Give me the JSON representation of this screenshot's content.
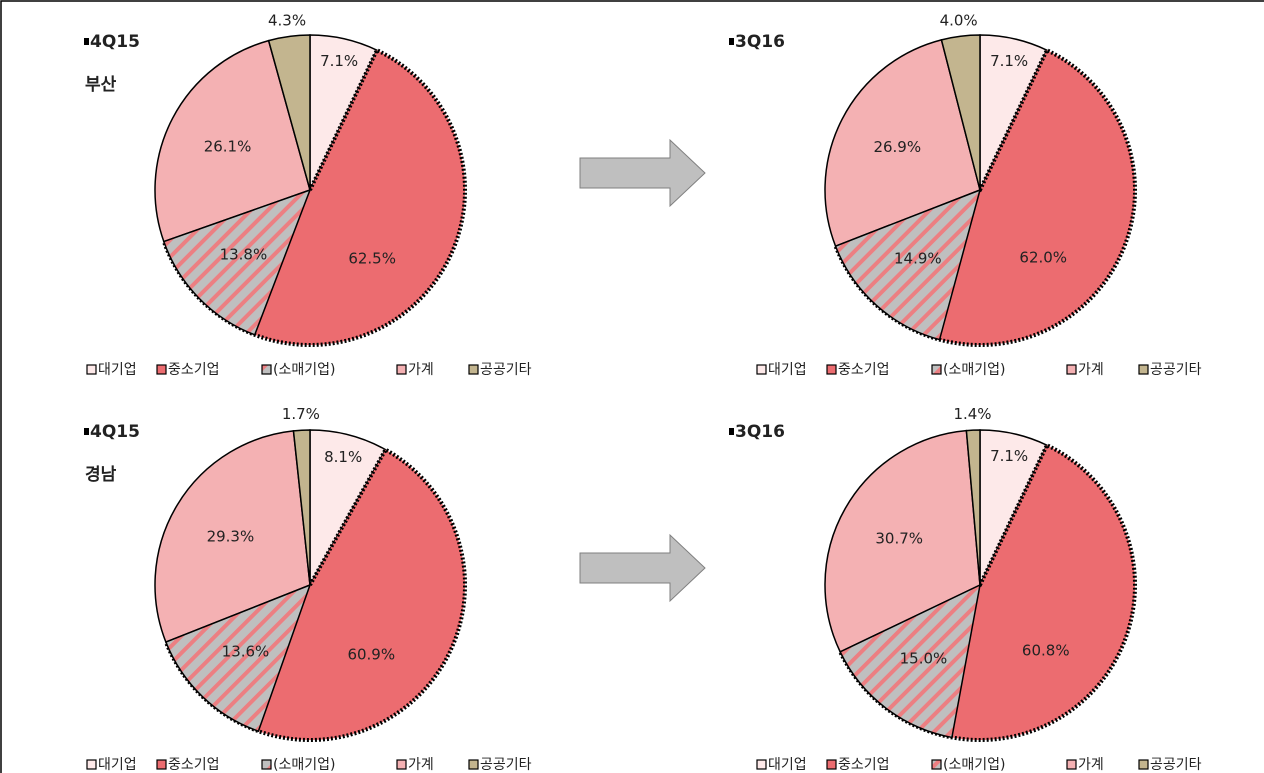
{
  "chart_data": [
    {
      "type": "pie",
      "title": "4Q15",
      "subtitle": "부산",
      "categories": [
        "대기업",
        "중소기업",
        "(소매기업)",
        "가계",
        "공공기타"
      ],
      "values": [
        7.1,
        62.5,
        13.8,
        26.1,
        4.3
      ],
      "value_labels": [
        "7.1%",
        "62.5%",
        "13.8%",
        "26.1%",
        "4.3%"
      ],
      "colors": [
        "#fde9e9",
        "#ec6c70",
        "#bfbfbf",
        "#f4b1b3",
        "#c3b58f"
      ]
    },
    {
      "type": "pie",
      "title": "3Q16",
      "categories": [
        "대기업",
        "중소기업",
        "(소매기업)",
        "가계",
        "공공기타"
      ],
      "values": [
        7.1,
        62.0,
        14.9,
        26.9,
        4.0
      ],
      "value_labels": [
        "7.1%",
        "62.0%",
        "14.9%",
        "26.9%",
        "4.0%"
      ],
      "colors": [
        "#fde9e9",
        "#ec6c70",
        "#bfbfbf",
        "#f4b1b3",
        "#c3b58f"
      ]
    },
    {
      "type": "pie",
      "title": "4Q15",
      "subtitle": "경남",
      "categories": [
        "대기업",
        "중소기업",
        "(소매기업)",
        "가계",
        "공공기타"
      ],
      "values": [
        8.1,
        60.9,
        13.6,
        29.3,
        1.7
      ],
      "value_labels": [
        "8.1%",
        "60.9%",
        "13.6%",
        "29.3%",
        "1.7%"
      ],
      "colors": [
        "#fde9e9",
        "#ec6c70",
        "#bfbfbf",
        "#f4b1b3",
        "#c3b58f"
      ]
    },
    {
      "type": "pie",
      "title": "3Q16",
      "categories": [
        "대기업",
        "중소기업",
        "(소매기업)",
        "가계",
        "공공기타"
      ],
      "values": [
        7.1,
        60.8,
        15.0,
        30.7,
        1.4
      ],
      "value_labels": [
        "7.1%",
        "60.8%",
        "15.0%",
        "30.7%",
        "1.4%"
      ],
      "colors": [
        "#fde9e9",
        "#ec6c70",
        "#bfbfbf",
        "#f4b1b3",
        "#c3b58f"
      ]
    }
  ]
}
